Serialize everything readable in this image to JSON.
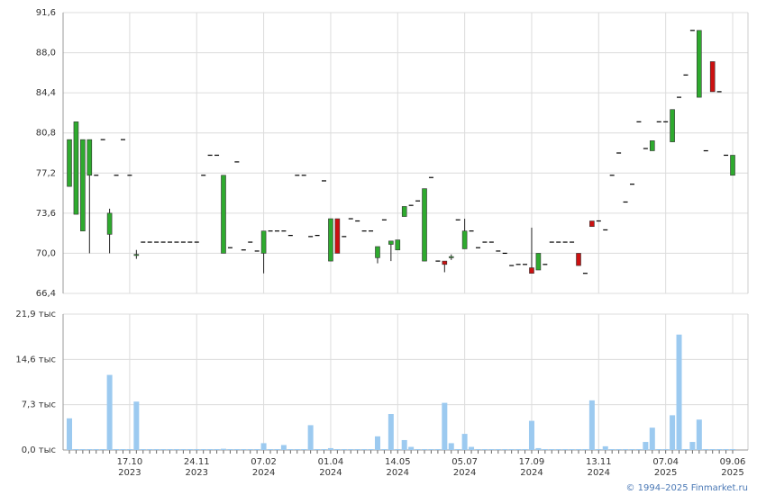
{
  "chart_data": {
    "type": "candlestick",
    "categories": [
      null,
      null,
      null,
      null,
      null,
      null,
      null,
      null,
      null,
      "17.10",
      null,
      null,
      null,
      null,
      null,
      null,
      null,
      null,
      null,
      "24.11",
      null,
      null,
      null,
      null,
      null,
      null,
      null,
      null,
      null,
      "07.02",
      null,
      null,
      null,
      null,
      null,
      null,
      null,
      null,
      null,
      "01.04",
      null,
      null,
      null,
      null,
      null,
      null,
      null,
      null,
      null,
      "14.05",
      null,
      null,
      null,
      null,
      null,
      null,
      null,
      null,
      null,
      "05.07",
      null,
      null,
      null,
      null,
      null,
      null,
      null,
      null,
      null,
      "17.09",
      null,
      null,
      null,
      null,
      null,
      null,
      null,
      null,
      null,
      "13.11",
      null,
      null,
      null,
      null,
      null,
      null,
      null,
      null,
      null,
      "07.04",
      null,
      null,
      null,
      null,
      null,
      null,
      null,
      null,
      null,
      "09.06"
    ],
    "category_years": [
      null,
      null,
      null,
      null,
      null,
      null,
      null,
      null,
      null,
      "2023",
      null,
      null,
      null,
      null,
      null,
      null,
      null,
      null,
      null,
      "2023",
      null,
      null,
      null,
      null,
      null,
      null,
      null,
      null,
      null,
      "2024",
      null,
      null,
      null,
      null,
      null,
      null,
      null,
      null,
      null,
      "2024",
      null,
      null,
      null,
      null,
      null,
      null,
      null,
      null,
      null,
      "2024",
      null,
      null,
      null,
      null,
      null,
      null,
      null,
      null,
      null,
      "2024",
      null,
      null,
      null,
      null,
      null,
      null,
      null,
      null,
      null,
      "2024",
      null,
      null,
      null,
      null,
      null,
      null,
      null,
      null,
      null,
      "2024",
      null,
      null,
      null,
      null,
      null,
      null,
      null,
      null,
      null,
      "2025",
      null,
      null,
      null,
      null,
      null,
      null,
      null,
      null,
      null,
      "2025"
    ],
    "ohlc": [
      [
        76,
        80.2,
        76,
        80.2
      ],
      [
        73.5,
        81.8,
        73.5,
        81.8
      ],
      [
        72,
        80.2,
        72,
        80.2
      ],
      [
        77,
        80.2,
        70,
        80.2
      ],
      [
        77,
        77,
        77,
        77
      ],
      [
        80.2,
        80.2,
        80.2,
        80.2
      ],
      [
        71.7,
        74,
        70,
        73.6
      ],
      [
        77,
        77,
        77,
        77
      ],
      [
        80.2,
        80.2,
        80.2,
        80.2
      ],
      [
        77,
        77,
        77,
        77
      ],
      [
        69.8,
        70.3,
        69.5,
        69.9
      ],
      [
        71,
        71,
        71,
        71
      ],
      [
        71,
        71,
        71,
        71
      ],
      [
        71,
        71,
        71,
        71
      ],
      [
        71,
        71,
        71,
        71
      ],
      [
        71,
        71,
        71,
        71
      ],
      [
        71,
        71,
        71,
        71
      ],
      [
        71,
        71,
        71,
        71
      ],
      [
        71,
        71,
        71,
        71
      ],
      [
        71,
        71,
        71,
        71
      ],
      [
        77,
        77,
        77,
        77
      ],
      [
        78.8,
        78.8,
        78.8,
        78.8
      ],
      [
        78.8,
        78.8,
        78.8,
        78.8
      ],
      [
        70,
        77,
        70,
        77
      ],
      [
        70.5,
        70.5,
        70.5,
        70.5
      ],
      [
        78.2,
        78.2,
        78.2,
        78.2
      ],
      [
        70.3,
        70.3,
        70.3,
        70.3
      ],
      [
        71,
        71,
        71,
        71
      ],
      [
        70.2,
        70.2,
        70.2,
        70.2
      ],
      [
        70,
        72,
        68.2,
        72
      ],
      [
        72,
        72,
        72,
        72
      ],
      [
        72,
        72,
        72,
        72
      ],
      [
        72,
        72,
        72,
        72
      ],
      [
        71.6,
        71.6,
        71.6,
        71.6
      ],
      [
        77,
        77,
        77,
        77
      ],
      [
        77,
        77,
        77,
        77
      ],
      [
        71.5,
        71.5,
        71.5,
        71.5
      ],
      [
        71.6,
        71.6,
        71.6,
        71.6
      ],
      [
        76.5,
        76.5,
        76.5,
        76.5
      ],
      [
        69.3,
        73.1,
        69.3,
        73.1
      ],
      [
        73.1,
        73.1,
        70,
        70
      ],
      [
        71.5,
        71.5,
        71.5,
        71.5
      ],
      [
        73.1,
        73.1,
        73.1,
        73.1
      ],
      [
        72.9,
        72.9,
        72.9,
        72.9
      ],
      [
        72,
        72,
        72,
        72
      ],
      [
        72,
        72,
        72,
        72
      ],
      [
        69.6,
        70.6,
        69.1,
        70.6
      ],
      [
        73,
        73,
        73,
        73
      ],
      [
        70.8,
        71.1,
        69.3,
        71.1
      ],
      [
        70.3,
        71.2,
        70.3,
        71.2
      ],
      [
        73.3,
        74.2,
        73.3,
        74.2
      ],
      [
        74.3,
        74.3,
        74.3,
        74.3
      ],
      [
        74.7,
        74.7,
        74.7,
        74.7
      ],
      [
        69.3,
        75.8,
        69.3,
        75.8
      ],
      [
        76.8,
        76.8,
        76.8,
        76.8
      ],
      [
        69.3,
        69.3,
        69.3,
        69.3
      ],
      [
        69.3,
        69.3,
        68.3,
        69
      ],
      [
        69.6,
        69.9,
        69.4,
        69.7
      ],
      [
        73,
        73,
        73,
        73
      ],
      [
        70.4,
        73.1,
        70.4,
        72
      ],
      [
        72,
        72,
        72,
        72
      ],
      [
        70.5,
        70.5,
        70.5,
        70.5
      ],
      [
        71,
        71,
        71,
        71
      ],
      [
        71,
        71,
        71,
        71
      ],
      [
        70.2,
        70.2,
        70.2,
        70.2
      ],
      [
        70,
        70,
        70,
        70
      ],
      [
        68.9,
        68.9,
        68.9,
        68.9
      ],
      [
        69,
        69,
        69,
        69
      ],
      [
        69,
        69,
        69,
        69
      ],
      [
        68.7,
        72.3,
        68.2,
        68.2
      ],
      [
        68.5,
        70,
        68.5,
        70
      ],
      [
        69,
        69,
        69,
        69
      ],
      [
        71,
        71,
        71,
        71
      ],
      [
        71,
        71,
        71,
        71
      ],
      [
        71,
        71,
        71,
        71
      ],
      [
        71,
        71,
        71,
        71
      ],
      [
        70,
        70,
        68.9,
        68.9
      ],
      [
        68.2,
        68.2,
        68.2,
        68.2
      ],
      [
        72.9,
        72.9,
        72.4,
        72.4
      ],
      [
        72.9,
        72.9,
        72.9,
        72.9
      ],
      [
        72.1,
        72.1,
        72.1,
        72.1
      ],
      [
        77,
        77,
        77,
        77
      ],
      [
        79,
        79,
        79,
        79
      ],
      [
        74.6,
        74.6,
        74.6,
        74.6
      ],
      [
        76.2,
        76.2,
        76.2,
        76.2
      ],
      [
        81.8,
        81.8,
        81.8,
        81.8
      ],
      [
        79.4,
        79.4,
        79.4,
        79.4
      ],
      [
        79.2,
        80.1,
        79.2,
        80.1
      ],
      [
        81.8,
        81.8,
        81.8,
        81.8
      ],
      [
        81.8,
        81.8,
        81.8,
        81.8
      ],
      [
        80,
        82.9,
        80,
        82.9
      ],
      [
        84,
        84,
        84,
        84
      ],
      [
        86,
        86,
        86,
        86
      ],
      [
        90,
        90,
        90,
        90
      ],
      [
        84,
        90,
        84,
        90
      ],
      [
        79.2,
        79.2,
        79.2,
        79.2
      ],
      [
        87.2,
        87.2,
        84.5,
        84.5
      ],
      [
        84.5,
        84.5,
        84.5,
        84.5
      ],
      [
        78.8,
        78.8,
        78.8,
        78.8
      ],
      [
        77,
        78.8,
        77,
        78.8
      ]
    ],
    "volume": [
      5.1,
      0,
      0,
      0,
      0,
      0,
      12.1,
      0,
      0,
      0,
      7.8,
      0,
      0,
      0,
      0,
      0,
      0,
      0,
      0,
      0,
      0,
      0,
      0,
      0.2,
      0,
      0,
      0,
      0,
      0,
      1.1,
      0,
      0,
      0.8,
      0,
      0,
      0,
      4.0,
      0,
      0,
      0.3,
      0,
      0,
      0,
      0,
      0,
      0,
      2.2,
      0,
      5.8,
      0,
      1.6,
      0.5,
      0,
      0,
      0,
      0,
      7.6,
      1.1,
      0,
      2.6,
      0.5,
      0,
      0,
      0,
      0,
      0,
      0,
      0,
      0,
      4.7,
      0.3,
      0,
      0,
      0,
      0,
      0,
      0,
      0,
      8.0,
      0,
      0.6,
      0,
      0,
      0,
      0,
      0,
      1.3,
      3.6,
      0,
      0,
      5.6,
      18.6,
      0,
      1.3,
      4.9,
      0,
      0,
      0,
      0,
      0
    ],
    "up_color": "#2eaa2e",
    "down_color": "#cc1111",
    "flat_color": "#000000",
    "volume_color": "#9ccaf0",
    "ylim": [
      66.4,
      91.6
    ],
    "yticks": [
      {
        "value": 66.4,
        "label": "66,4"
      },
      {
        "value": 70.0,
        "label": "70,0"
      },
      {
        "value": 73.6,
        "label": "73,6"
      },
      {
        "value": 77.2,
        "label": "77,2"
      },
      {
        "value": 80.8,
        "label": "80,8"
      },
      {
        "value": 84.4,
        "label": "84,4"
      },
      {
        "value": 88.0,
        "label": "88,0"
      },
      {
        "value": 91.6,
        "label": "91,6"
      }
    ],
    "y2lim": [
      0,
      21.9
    ],
    "y2ticks": [
      {
        "value": 0,
        "label": "0,0 тыс"
      },
      {
        "value": 7.3,
        "label": "7,3 тыс"
      },
      {
        "value": 14.6,
        "label": "14,6 тыс"
      },
      {
        "value": 21.9,
        "label": "21,9 тыс"
      }
    ],
    "grid": true,
    "copyright": "© 1994–2025 Finmarket.ru"
  }
}
